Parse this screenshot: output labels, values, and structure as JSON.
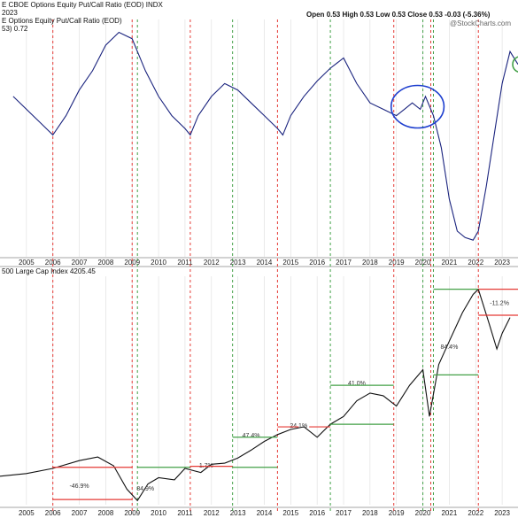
{
  "top_panel": {
    "title": "E CBOE Options Equity Put/Call Ratio (EOD) INDX",
    "date_label": "2023",
    "legend": "E Options Equity Put/Call Ratio (EOD)",
    "legend_value": "53) 0.72",
    "ohlc": {
      "open_label": "Open",
      "open": "0.53",
      "high_label": "High",
      "high": "0.53",
      "low_label": "Low",
      "low": "0.53",
      "close_label": "Close",
      "close": "0.53",
      "change": "-0.03 (-5.36%)"
    },
    "watermark": "@StockCharts.com"
  },
  "bottom_panel": {
    "legend": "500 Large Cap Index 4205.45"
  },
  "colors": {
    "line": "#1a237e",
    "red_marker": "#e53935",
    "green_marker": "#43a047",
    "circle_blue": "#1e3fcf",
    "circle_green": "#43a047",
    "grid": "#dddddd"
  },
  "chart_data": [
    {
      "type": "line",
      "series_name": "CBOE Options Equity Put/Call Ratio (EOD)",
      "x_tick_labels": [
        "2005",
        "2006",
        "2007",
        "2008",
        "2009",
        "2010",
        "2011",
        "2012",
        "2013",
        "2014",
        "2015",
        "2016",
        "2017",
        "2018",
        "2019",
        "2020",
        "2021",
        "2022",
        "2023"
      ],
      "x": [
        2004.5,
        2005.5,
        2006.0,
        2006.5,
        2007.0,
        2007.5,
        2008.0,
        2008.5,
        2009.0,
        2009.5,
        2010.0,
        2010.5,
        2011.0,
        2011.2,
        2011.5,
        2012.0,
        2012.5,
        2013.0,
        2013.5,
        2014.0,
        2014.5,
        2014.7,
        2015.0,
        2015.5,
        2016.0,
        2016.5,
        2017.0,
        2017.5,
        2018.0,
        2018.5,
        2019.0,
        2019.3,
        2019.6,
        2019.9,
        2020.1,
        2020.4,
        2020.7,
        2021.0,
        2021.3,
        2021.6,
        2021.9,
        2022.1,
        2022.4,
        2022.7,
        2023.0,
        2023.3,
        2023.6
      ],
      "y": [
        0.5,
        0.3,
        0.2,
        0.35,
        0.55,
        0.7,
        0.9,
        1.0,
        0.95,
        0.7,
        0.5,
        0.35,
        0.25,
        0.2,
        0.35,
        0.5,
        0.6,
        0.55,
        0.45,
        0.35,
        0.25,
        0.2,
        0.35,
        0.5,
        0.62,
        0.72,
        0.8,
        0.6,
        0.45,
        0.4,
        0.35,
        0.4,
        0.45,
        0.4,
        0.5,
        0.35,
        0.1,
        -0.3,
        -0.55,
        -0.6,
        -0.62,
        -0.55,
        -0.2,
        0.2,
        0.6,
        0.85,
        0.75
      ],
      "markers_red_x": [
        2006.0,
        2009.0,
        2011.2,
        2014.5,
        2018.9,
        2020.3,
        2022.1
      ],
      "markers_green_x": [
        2009.2,
        2012.8,
        2016.5,
        2020.0,
        2020.4
      ],
      "annotation_ellipse_x": [
        2018.8,
        2020.8
      ]
    },
    {
      "type": "line",
      "series_name": "500 Large Cap Index",
      "last_value": 4205.45,
      "x_tick_labels": [
        "2005",
        "2006",
        "2007",
        "2008",
        "2009",
        "2010",
        "2011",
        "2012",
        "2013",
        "2014",
        "2015",
        "2016",
        "2017",
        "2018",
        "2019",
        "2020",
        "2021",
        "2022",
        "2023"
      ],
      "x": [
        2004.0,
        2005.0,
        2006.0,
        2007.0,
        2007.7,
        2008.3,
        2008.8,
        2009.2,
        2009.6,
        2010.0,
        2010.6,
        2011.0,
        2011.6,
        2012.0,
        2012.5,
        2013.0,
        2013.5,
        2014.0,
        2014.5,
        2015.0,
        2015.5,
        2016.0,
        2016.5,
        2017.0,
        2017.5,
        2018.0,
        2018.5,
        2019.0,
        2019.5,
        2020.0,
        2020.25,
        2020.6,
        2021.0,
        2021.5,
        2021.9,
        2022.1,
        2022.5,
        2022.8,
        2023.0,
        2023.3
      ],
      "y": [
        1150,
        1200,
        1300,
        1450,
        1520,
        1350,
        900,
        680,
        1000,
        1120,
        1080,
        1300,
        1220,
        1380,
        1400,
        1500,
        1650,
        1820,
        1950,
        2050,
        2100,
        1900,
        2150,
        2300,
        2600,
        2750,
        2700,
        2500,
        2900,
        3200,
        2300,
        3300,
        3750,
        4300,
        4650,
        4750,
        4100,
        3600,
        3900,
        4205
      ],
      "ylim": [
        600,
        5000
      ],
      "annotations": [
        {
          "label": "-46.9%",
          "x": 2007.0,
          "y": 920
        },
        {
          "label": "84.9%",
          "x": 2009.5,
          "y": 870
        },
        {
          "label": "1.7%",
          "x": 2011.8,
          "y": 1320
        },
        {
          "label": "47.4%",
          "x": 2013.5,
          "y": 1900
        },
        {
          "label": "24.1%",
          "x": 2015.3,
          "y": 2080
        },
        {
          "label": "41.0%",
          "x": 2017.5,
          "y": 2900
        },
        {
          "label": "84.4%",
          "x": 2021.0,
          "y": 3600
        },
        {
          "label": "-11.2%",
          "x": 2022.9,
          "y": 4450
        }
      ]
    }
  ]
}
